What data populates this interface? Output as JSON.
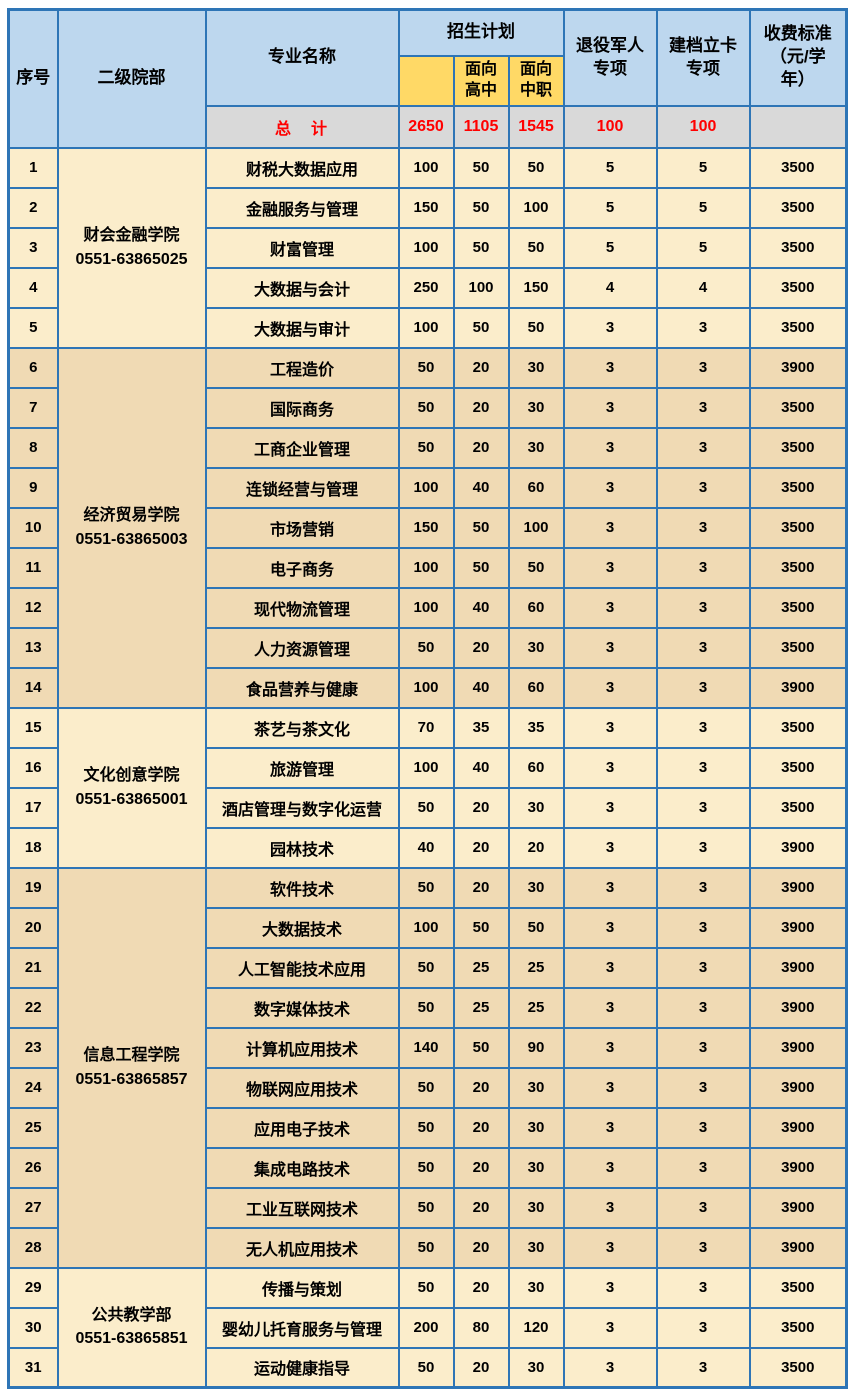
{
  "colors": {
    "border": "#2e75b6",
    "header_bg": "#bdd7ee",
    "subheader_yellow": "#ffd966",
    "total_row_bg": "#d9d9d9",
    "total_text_red": "#ff0000",
    "group_light_bg": "#fbedcb",
    "group_dark_bg": "#f0dab4",
    "page_bg": "#ffffff"
  },
  "table": {
    "header": {
      "serial": "序号",
      "department": "二级院部",
      "major": "专业名称",
      "plan": "招生计划",
      "plan_total": "",
      "plan_high_school": "面向\n高中",
      "plan_vocational": "面向\n中职",
      "veteran": "退役军人\n专项",
      "poverty": "建档立卡\n专项",
      "fee": "收费标准\n（元/学\n年）"
    },
    "total_row": {
      "label": "总　计",
      "plan_total": "2650",
      "plan_high_school": "1105",
      "plan_vocational": "1545",
      "veteran_quota": "100",
      "poverty_quota": "100",
      "fee": ""
    },
    "groups": [
      {
        "department": "财会金融学院",
        "phone": "0551-63865025",
        "shade": "light",
        "rows": [
          {
            "serial": "1",
            "major": "财税大数据应用",
            "plan_total": "100",
            "plan_high_school": "50",
            "plan_vocational": "50",
            "veteran_quota": "5",
            "poverty_quota": "5",
            "fee": "3500"
          },
          {
            "serial": "2",
            "major": "金融服务与管理",
            "plan_total": "150",
            "plan_high_school": "50",
            "plan_vocational": "100",
            "veteran_quota": "5",
            "poverty_quota": "5",
            "fee": "3500"
          },
          {
            "serial": "3",
            "major": "财富管理",
            "plan_total": "100",
            "plan_high_school": "50",
            "plan_vocational": "50",
            "veteran_quota": "5",
            "poverty_quota": "5",
            "fee": "3500"
          },
          {
            "serial": "4",
            "major": "大数据与会计",
            "plan_total": "250",
            "plan_high_school": "100",
            "plan_vocational": "150",
            "veteran_quota": "4",
            "poverty_quota": "4",
            "fee": "3500"
          },
          {
            "serial": "5",
            "major": "大数据与审计",
            "plan_total": "100",
            "plan_high_school": "50",
            "plan_vocational": "50",
            "veteran_quota": "3",
            "poverty_quota": "3",
            "fee": "3500"
          }
        ]
      },
      {
        "department": "经济贸易学院",
        "phone": "0551-63865003",
        "shade": "dark",
        "rows": [
          {
            "serial": "6",
            "major": "工程造价",
            "plan_total": "50",
            "plan_high_school": "20",
            "plan_vocational": "30",
            "veteran_quota": "3",
            "poverty_quota": "3",
            "fee": "3900"
          },
          {
            "serial": "7",
            "major": "国际商务",
            "plan_total": "50",
            "plan_high_school": "20",
            "plan_vocational": "30",
            "veteran_quota": "3",
            "poverty_quota": "3",
            "fee": "3500"
          },
          {
            "serial": "8",
            "major": "工商企业管理",
            "plan_total": "50",
            "plan_high_school": "20",
            "plan_vocational": "30",
            "veteran_quota": "3",
            "poverty_quota": "3",
            "fee": "3500"
          },
          {
            "serial": "9",
            "major": "连锁经营与管理",
            "plan_total": "100",
            "plan_high_school": "40",
            "plan_vocational": "60",
            "veteran_quota": "3",
            "poverty_quota": "3",
            "fee": "3500"
          },
          {
            "serial": "10",
            "major": "市场营销",
            "plan_total": "150",
            "plan_high_school": "50",
            "plan_vocational": "100",
            "veteran_quota": "3",
            "poverty_quota": "3",
            "fee": "3500"
          },
          {
            "serial": "11",
            "major": "电子商务",
            "plan_total": "100",
            "plan_high_school": "50",
            "plan_vocational": "50",
            "veteran_quota": "3",
            "poverty_quota": "3",
            "fee": "3500"
          },
          {
            "serial": "12",
            "major": "现代物流管理",
            "plan_total": "100",
            "plan_high_school": "40",
            "plan_vocational": "60",
            "veteran_quota": "3",
            "poverty_quota": "3",
            "fee": "3500"
          },
          {
            "serial": "13",
            "major": "人力资源管理",
            "plan_total": "50",
            "plan_high_school": "20",
            "plan_vocational": "30",
            "veteran_quota": "3",
            "poverty_quota": "3",
            "fee": "3500"
          },
          {
            "serial": "14",
            "major": "食品营养与健康",
            "plan_total": "100",
            "plan_high_school": "40",
            "plan_vocational": "60",
            "veteran_quota": "3",
            "poverty_quota": "3",
            "fee": "3900"
          }
        ]
      },
      {
        "department": "文化创意学院",
        "phone": "0551-63865001",
        "shade": "light",
        "rows": [
          {
            "serial": "15",
            "major": "茶艺与茶文化",
            "plan_total": "70",
            "plan_high_school": "35",
            "plan_vocational": "35",
            "veteran_quota": "3",
            "poverty_quota": "3",
            "fee": "3500"
          },
          {
            "serial": "16",
            "major": "旅游管理",
            "plan_total": "100",
            "plan_high_school": "40",
            "plan_vocational": "60",
            "veteran_quota": "3",
            "poverty_quota": "3",
            "fee": "3500"
          },
          {
            "serial": "17",
            "major": "酒店管理与数字化运营",
            "plan_total": "50",
            "plan_high_school": "20",
            "plan_vocational": "30",
            "veteran_quota": "3",
            "poverty_quota": "3",
            "fee": "3500"
          },
          {
            "serial": "18",
            "major": "园林技术",
            "plan_total": "40",
            "plan_high_school": "20",
            "plan_vocational": "20",
            "veteran_quota": "3",
            "poverty_quota": "3",
            "fee": "3900"
          }
        ]
      },
      {
        "department": "信息工程学院",
        "phone": "0551-63865857",
        "shade": "dark",
        "rows": [
          {
            "serial": "19",
            "major": "软件技术",
            "plan_total": "50",
            "plan_high_school": "20",
            "plan_vocational": "30",
            "veteran_quota": "3",
            "poverty_quota": "3",
            "fee": "3900"
          },
          {
            "serial": "20",
            "major": "大数据技术",
            "plan_total": "100",
            "plan_high_school": "50",
            "plan_vocational": "50",
            "veteran_quota": "3",
            "poverty_quota": "3",
            "fee": "3900"
          },
          {
            "serial": "21",
            "major": "人工智能技术应用",
            "plan_total": "50",
            "plan_high_school": "25",
            "plan_vocational": "25",
            "veteran_quota": "3",
            "poverty_quota": "3",
            "fee": "3900"
          },
          {
            "serial": "22",
            "major": "数字媒体技术",
            "plan_total": "50",
            "plan_high_school": "25",
            "plan_vocational": "25",
            "veteran_quota": "3",
            "poverty_quota": "3",
            "fee": "3900"
          },
          {
            "serial": "23",
            "major": "计算机应用技术",
            "plan_total": "140",
            "plan_high_school": "50",
            "plan_vocational": "90",
            "veteran_quota": "3",
            "poverty_quota": "3",
            "fee": "3900"
          },
          {
            "serial": "24",
            "major": "物联网应用技术",
            "plan_total": "50",
            "plan_high_school": "20",
            "plan_vocational": "30",
            "veteran_quota": "3",
            "poverty_quota": "3",
            "fee": "3900"
          },
          {
            "serial": "25",
            "major": "应用电子技术",
            "plan_total": "50",
            "plan_high_school": "20",
            "plan_vocational": "30",
            "veteran_quota": "3",
            "poverty_quota": "3",
            "fee": "3900"
          },
          {
            "serial": "26",
            "major": "集成电路技术",
            "plan_total": "50",
            "plan_high_school": "20",
            "plan_vocational": "30",
            "veteran_quota": "3",
            "poverty_quota": "3",
            "fee": "3900"
          },
          {
            "serial": "27",
            "major": "工业互联网技术",
            "plan_total": "50",
            "plan_high_school": "20",
            "plan_vocational": "30",
            "veteran_quota": "3",
            "poverty_quota": "3",
            "fee": "3900"
          },
          {
            "serial": "28",
            "major": "无人机应用技术",
            "plan_total": "50",
            "plan_high_school": "20",
            "plan_vocational": "30",
            "veteran_quota": "3",
            "poverty_quota": "3",
            "fee": "3900"
          }
        ]
      },
      {
        "department": "公共教学部",
        "phone": "0551-63865851",
        "shade": "light",
        "rows": [
          {
            "serial": "29",
            "major": "传播与策划",
            "plan_total": "50",
            "plan_high_school": "20",
            "plan_vocational": "30",
            "veteran_quota": "3",
            "poverty_quota": "3",
            "fee": "3500"
          },
          {
            "serial": "30",
            "major": "婴幼儿托育服务与管理",
            "plan_total": "200",
            "plan_high_school": "80",
            "plan_vocational": "120",
            "veteran_quota": "3",
            "poverty_quota": "3",
            "fee": "3500"
          },
          {
            "serial": "31",
            "major": "运动健康指导",
            "plan_total": "50",
            "plan_high_school": "20",
            "plan_vocational": "30",
            "veteran_quota": "3",
            "poverty_quota": "3",
            "fee": "3500"
          }
        ]
      }
    ]
  }
}
